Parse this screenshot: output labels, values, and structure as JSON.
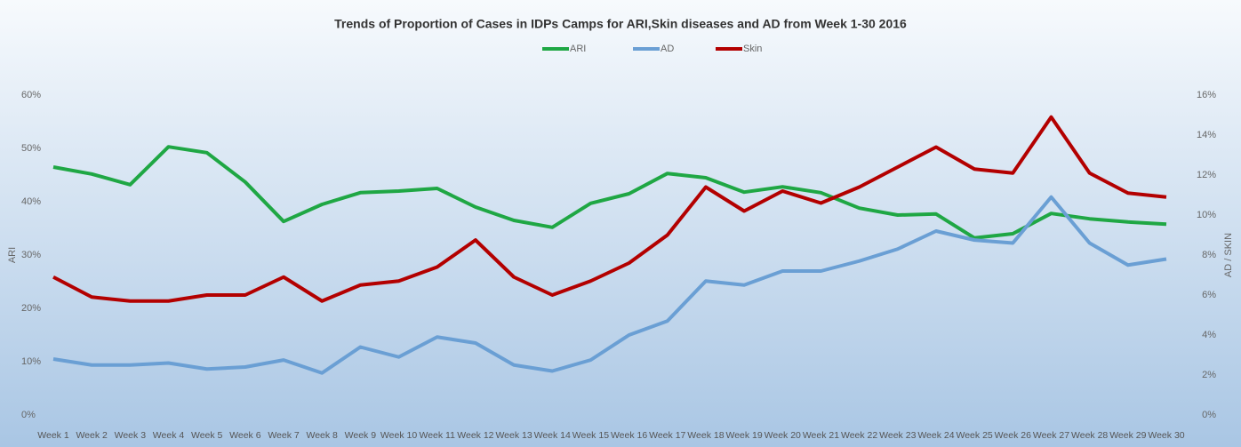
{
  "chart_data": {
    "type": "line",
    "title": "Trends of Proportion of Cases in IDPs Camps for ARI,Skin diseases and AD from Week 1-30 2016",
    "ylabel": "ARI",
    "y2label": "AD / SKIN",
    "categories": [
      "Week 1",
      "Week 2",
      "Week 3",
      "Week 4",
      "Week 5",
      "Week 6",
      "Week 7",
      "Week 8",
      "Week 9",
      "Week 10",
      "Week 11",
      "Week 12",
      "Week 13",
      "Week 14",
      "Week 15",
      "Week 16",
      "Week 17",
      "Week 18",
      "Week 19",
      "Week 20",
      "Week 21",
      "Week 22",
      "Week 23",
      "Week 24",
      "Week 25",
      "Week 26",
      "Week 27",
      "Week 28",
      "Week 29",
      "Week 30"
    ],
    "series": [
      {
        "name": "ARI",
        "color": "#1fa744",
        "axis": "y",
        "values": [
          46.5,
          45.2,
          43.2,
          50.3,
          49.2,
          43.7,
          36.3,
          39.5,
          41.7,
          42,
          42.5,
          39,
          36.5,
          35.2,
          39.7,
          41.5,
          45.3,
          44.5,
          41.8,
          42.8,
          41.7,
          38.8,
          37.5,
          37.7,
          33.2,
          34,
          37.8,
          36.8,
          36.2,
          35.8
        ]
      },
      {
        "name": "AD",
        "color": "#6a9fd4",
        "axis": "y2",
        "values": [
          2.8,
          2.5,
          2.5,
          2.6,
          2.3,
          2.4,
          2.75,
          2.1,
          3.4,
          2.9,
          3.9,
          3.6,
          2.5,
          2.2,
          2.75,
          4,
          4.7,
          6.7,
          6.5,
          7.2,
          7.2,
          7.7,
          8.3,
          9.2,
          8.75,
          8.6,
          10.9,
          8.6,
          7.5,
          7.8
        ]
      },
      {
        "name": "Skin",
        "color": "#b30000",
        "axis": "y2",
        "values": [
          6.9,
          5.9,
          5.7,
          5.7,
          6,
          6,
          6.9,
          5.7,
          6.5,
          6.7,
          7.4,
          8.75,
          6.9,
          6,
          6.7,
          7.6,
          9,
          11.4,
          10.2,
          11.2,
          10.6,
          11.4,
          12.4,
          13.4,
          12.3,
          12.1,
          14.9,
          12.1,
          11.1,
          10.9
        ]
      }
    ],
    "ylim": [
      0,
      60
    ],
    "yticks": [
      {
        "value": 0,
        "label": "0%"
      },
      {
        "value": 10,
        "label": "10%"
      },
      {
        "value": 20,
        "label": "20%"
      },
      {
        "value": 30,
        "label": "30%"
      },
      {
        "value": 40,
        "label": "40%"
      },
      {
        "value": 50,
        "label": "50%"
      },
      {
        "value": 60,
        "label": "60%"
      }
    ],
    "y2lim": [
      0,
      16
    ],
    "y2ticks": [
      {
        "value": 0,
        "label": "0%"
      },
      {
        "value": 2,
        "label": "2%"
      },
      {
        "value": 4,
        "label": "4%"
      },
      {
        "value": 6,
        "label": "6%"
      },
      {
        "value": 8,
        "label": "8%"
      },
      {
        "value": 10,
        "label": "10%"
      },
      {
        "value": 12,
        "label": "12%"
      },
      {
        "value": 14,
        "label": "14%"
      },
      {
        "value": 16,
        "label": "16%"
      }
    ],
    "legend": "top"
  }
}
